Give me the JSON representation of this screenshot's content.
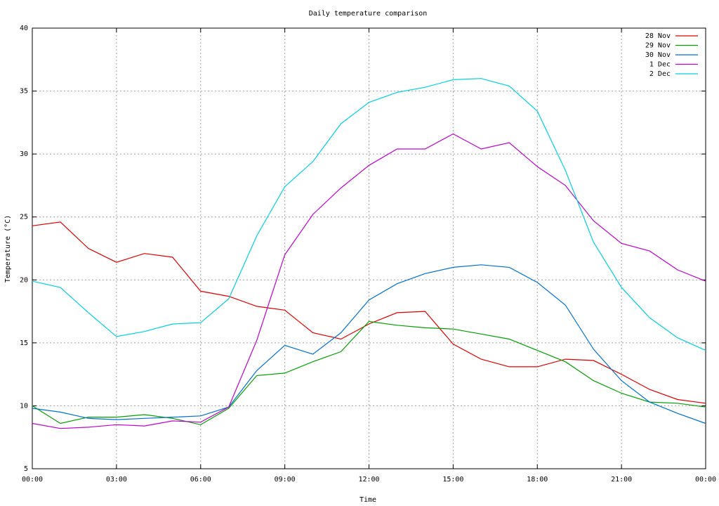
{
  "chart_data": {
    "type": "line",
    "title": "Daily temperature comparison",
    "x_label": "Time",
    "y_label": "Temperature (°C)",
    "x": [
      0,
      1,
      2,
      3,
      4,
      5,
      6,
      7,
      8,
      9,
      10,
      11,
      12,
      13,
      14,
      15,
      16,
      17,
      18,
      19,
      20,
      21,
      22,
      23,
      24
    ],
    "series": [
      {
        "name": "28 Nov",
        "color": "#e00000",
        "values": [
          24.3,
          24.6,
          22.5,
          21.4,
          22.1,
          21.8,
          19.1,
          18.7,
          17.9,
          17.6,
          15.8,
          15.3,
          16.5,
          17.4,
          17.5,
          14.9,
          13.7,
          13.1,
          13.1,
          13.7,
          13.6,
          12.5,
          11.3,
          10.5,
          10.2
        ]
      },
      {
        "name": "29 Nov",
        "color": "#00a000",
        "values": [
          10.0,
          8.6,
          9.1,
          9.1,
          9.3,
          9.0,
          8.5,
          9.8,
          12.4,
          12.6,
          13.5,
          14.3,
          16.7,
          16.4,
          16.2,
          16.1,
          15.7,
          15.3,
          14.4,
          13.5,
          12.0,
          11.0,
          10.3,
          10.2,
          9.9
        ]
      },
      {
        "name": "30 Nov",
        "color": "#0070d0",
        "values": [
          9.8,
          9.5,
          9.0,
          8.9,
          9.0,
          9.1,
          9.2,
          9.9,
          12.8,
          14.8,
          14.1,
          15.8,
          18.4,
          19.7,
          20.5,
          21.0,
          21.2,
          21.0,
          19.8,
          18.0,
          14.5,
          12.0,
          10.3,
          9.4,
          8.6
        ]
      },
      {
        "name": "1 Dec",
        "color": "#c000d0",
        "values": [
          8.6,
          8.2,
          8.3,
          8.5,
          8.4,
          8.8,
          8.7,
          9.9,
          15.2,
          22.0,
          25.2,
          27.3,
          29.1,
          30.4,
          30.4,
          31.6,
          30.4,
          30.9,
          29.0,
          27.5,
          24.7,
          22.9,
          22.3,
          20.8,
          19.9
        ]
      },
      {
        "name": "2 Dec",
        "color": "#00d0e0",
        "values": [
          19.9,
          19.4,
          17.4,
          15.5,
          15.9,
          16.5,
          16.6,
          18.5,
          23.5,
          27.4,
          29.4,
          32.4,
          34.1,
          34.9,
          35.3,
          35.9,
          36.0,
          35.4,
          33.4,
          28.7,
          23.0,
          19.4,
          17.0,
          15.4,
          14.4
        ]
      }
    ],
    "xlim": [
      0,
      24
    ],
    "xticks": [
      {
        "value": 0,
        "label": "00:00"
      },
      {
        "value": 3,
        "label": "03:00"
      },
      {
        "value": 6,
        "label": "06:00"
      },
      {
        "value": 9,
        "label": "09:00"
      },
      {
        "value": 12,
        "label": "12:00"
      },
      {
        "value": 15,
        "label": "15:00"
      },
      {
        "value": 18,
        "label": "18:00"
      },
      {
        "value": 21,
        "label": "21:00"
      },
      {
        "value": 24,
        "label": "00:00"
      }
    ],
    "ylim": [
      5,
      40
    ],
    "yticks": [
      5,
      10,
      15,
      20,
      25,
      30,
      35,
      40
    ],
    "grid": true,
    "legend": "top-right"
  }
}
